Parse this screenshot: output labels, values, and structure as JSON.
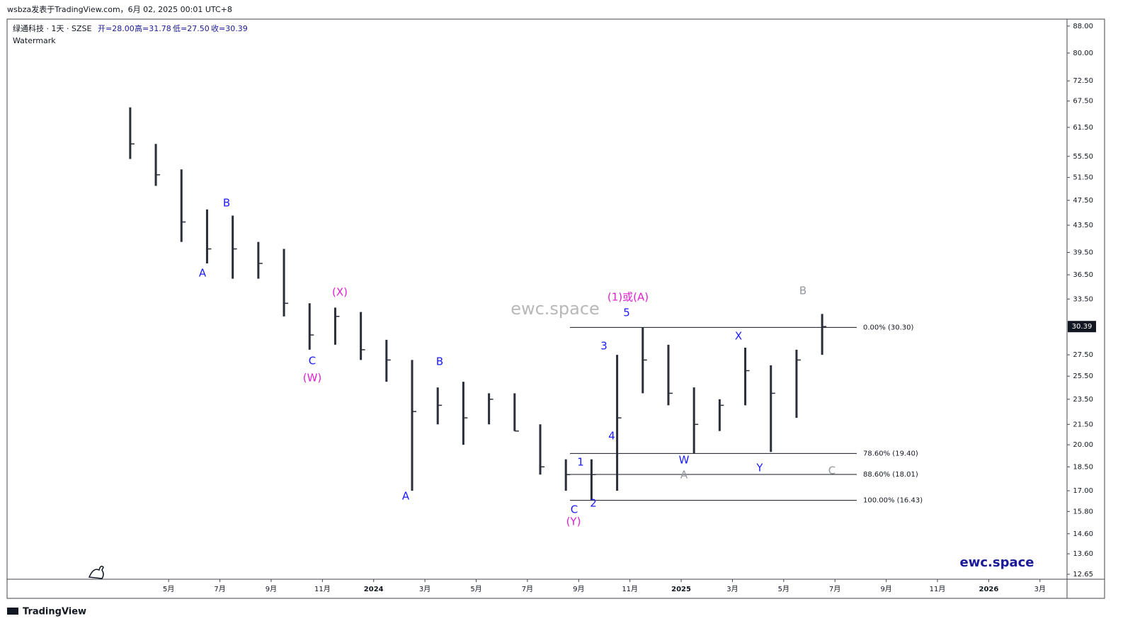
{
  "header": {
    "byline": "wsbza发表于TradingView.com，6月 02, 2025 00:01 UTC+8",
    "symbol": "绿通科技 · 1天 · SZSE",
    "open": "开=28.00",
    "high": "高=31.78",
    "low": "低=27.50",
    "close": "收=30.39",
    "watermark_label": "Watermark"
  },
  "watermark": "ewc.space",
  "brand": "ewc.space",
  "footer": "TradingView",
  "chart_data": {
    "type": "ohlc",
    "log_scale": true,
    "x": [
      "2023-03",
      "2023-04",
      "2023-05",
      "2023-06",
      "2023-07",
      "2023-08",
      "2023-09",
      "2023-10",
      "2023-11",
      "2023-12",
      "2024-01",
      "2024-02",
      "2024-03",
      "2024-04",
      "2024-05",
      "2024-06",
      "2024-07",
      "2024-08",
      "2024-09",
      "2024-10",
      "2024-11",
      "2024-12",
      "2025-01",
      "2025-02",
      "2025-03",
      "2025-04",
      "2025-05",
      "2025-06"
    ],
    "series": [
      {
        "color": "#2a2e39",
        "high": [
          66,
          58,
          53,
          46,
          45,
          41,
          40,
          33,
          32.5,
          32,
          29,
          27,
          24.5,
          25,
          24,
          24,
          21.5,
          19,
          19,
          27.5,
          30.3,
          28.5,
          24.5,
          23.5,
          28.2,
          26.5,
          28,
          31.78
        ],
        "low": [
          55,
          50,
          41,
          38,
          36,
          36,
          31.5,
          28,
          28.5,
          27,
          25,
          17,
          21.5,
          20,
          21.5,
          21,
          18,
          17,
          16.43,
          17,
          24,
          23,
          19.4,
          21,
          23,
          19.5,
          22,
          27.5
        ],
        "close": [
          58,
          52,
          44,
          40,
          40,
          38,
          33,
          29.5,
          31.5,
          28,
          27,
          22.5,
          23,
          22,
          23.5,
          21,
          18.5,
          18,
          18,
          22,
          27,
          24,
          21.5,
          23,
          26,
          24,
          27,
          30.39
        ]
      }
    ],
    "xlim": [
      "2022-11",
      "2026-04"
    ],
    "xticks": [
      {
        "value": "2023-05",
        "label": "5月"
      },
      {
        "value": "2023-07",
        "label": "7月"
      },
      {
        "value": "2023-09",
        "label": "9月"
      },
      {
        "value": "2023-11",
        "label": "11月"
      },
      {
        "value": "2024-01",
        "label": "2024"
      },
      {
        "value": "2024-03",
        "label": "3月"
      },
      {
        "value": "2024-05",
        "label": "5月"
      },
      {
        "value": "2024-07",
        "label": "7月"
      },
      {
        "value": "2024-09",
        "label": "9月"
      },
      {
        "value": "2024-11",
        "label": "11月"
      },
      {
        "value": "2025-01",
        "label": "2025"
      },
      {
        "value": "2025-03",
        "label": "3月"
      },
      {
        "value": "2025-05",
        "label": "5月"
      },
      {
        "value": "2025-07",
        "label": "7月"
      },
      {
        "value": "2025-09",
        "label": "9月"
      },
      {
        "value": "2025-11",
        "label": "11月"
      },
      {
        "value": "2026-01",
        "label": "2026"
      },
      {
        "value": "2026-03",
        "label": "3月"
      }
    ],
    "ylim": [
      12.43,
      90.2
    ],
    "yticks": [
      {
        "value": 88,
        "label": "88.00"
      },
      {
        "value": 80,
        "label": "80.00"
      },
      {
        "value": 72.5,
        "label": "72.50"
      },
      {
        "value": 67.5,
        "label": "67.50"
      },
      {
        "value": 61.5,
        "label": "61.50"
      },
      {
        "value": 55.5,
        "label": "55.50"
      },
      {
        "value": 51.5,
        "label": "51.50"
      },
      {
        "value": 47.5,
        "label": "47.50"
      },
      {
        "value": 43.5,
        "label": "43.50"
      },
      {
        "value": 39.5,
        "label": "39.50"
      },
      {
        "value": 36.5,
        "label": "36.50"
      },
      {
        "value": 33.5,
        "label": "33.50"
      },
      {
        "value": 27.5,
        "label": "27.50"
      },
      {
        "value": 25.5,
        "label": "25.50"
      },
      {
        "value": 23.5,
        "label": "23.50"
      },
      {
        "value": 21.5,
        "label": "21.50"
      },
      {
        "value": 20,
        "label": "20.00"
      },
      {
        "value": 18.5,
        "label": "18.50"
      },
      {
        "value": 17,
        "label": "17.00"
      },
      {
        "value": 15.8,
        "label": "15.80"
      },
      {
        "value": 14.6,
        "label": "14.60"
      },
      {
        "value": 13.6,
        "label": "13.60"
      },
      {
        "value": 12.65,
        "label": "12.65"
      }
    ],
    "last_price": {
      "value": 30.39,
      "label": "30.39"
    },
    "fib_levels": [
      {
        "value": 30.3,
        "label": "0.00% (30.30)"
      },
      {
        "value": 19.4,
        "label": "78.60% (19.40)"
      },
      {
        "value": 18.01,
        "label": "88.60% (18.01)"
      },
      {
        "value": 16.43,
        "label": "100.00% (16.43)"
      }
    ],
    "annotations": [
      {
        "text": "A",
        "color": "#1a1aff"
      },
      {
        "text": "B",
        "color": "#1a1aff"
      },
      {
        "text": "C",
        "color": "#1a1aff"
      },
      {
        "text": "(W)",
        "color": "#e020d0"
      },
      {
        "text": "(X)",
        "color": "#e020d0"
      },
      {
        "text": "A",
        "color": "#1a1aff"
      },
      {
        "text": "B",
        "color": "#1a1aff"
      },
      {
        "text": "C",
        "color": "#1a1aff"
      },
      {
        "text": "(Y)",
        "color": "#e020d0"
      },
      {
        "text": "1",
        "color": "#1a1aff"
      },
      {
        "text": "2",
        "color": "#1a1aff"
      },
      {
        "text": "3",
        "color": "#1a1aff"
      },
      {
        "text": "4",
        "color": "#1a1aff"
      },
      {
        "text": "5",
        "color": "#1a1aff"
      },
      {
        "text": "(1)或(A)",
        "color": "#e020d0"
      },
      {
        "text": "W",
        "color": "#1a1aff"
      },
      {
        "text": "A",
        "color": "#9598a1"
      },
      {
        "text": "X",
        "color": "#1a1aff"
      },
      {
        "text": "Y",
        "color": "#1a1aff"
      },
      {
        "text": "C",
        "color": "#9598a1"
      },
      {
        "text": "B",
        "color": "#9598a1"
      }
    ]
  }
}
